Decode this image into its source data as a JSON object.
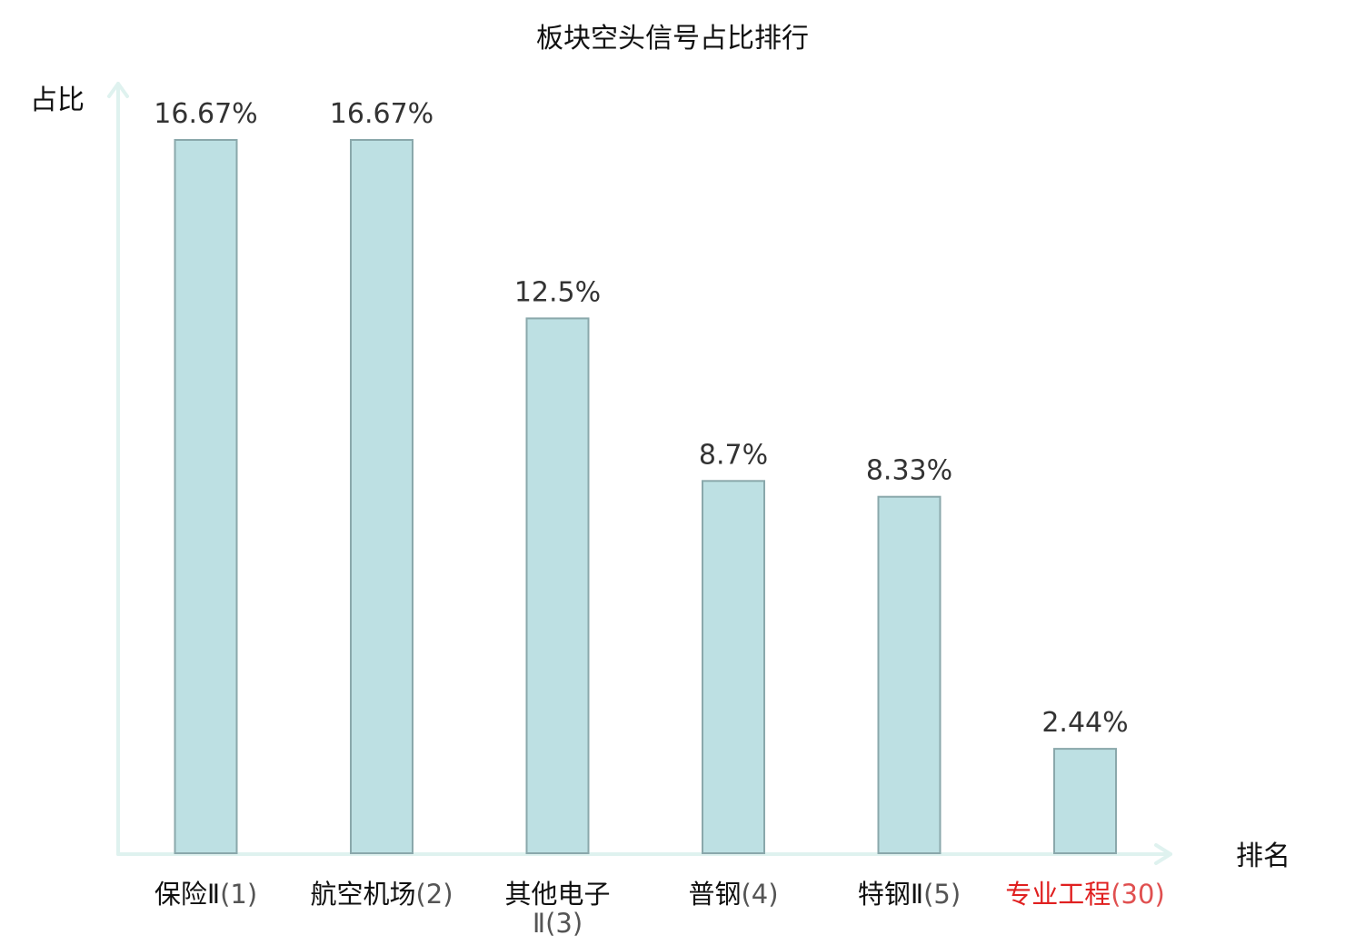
{
  "chart_data": {
    "type": "bar",
    "title": "板块空头信号占比排行",
    "xlabel": "排名",
    "ylabel": "占比",
    "categories": [
      {
        "name": "保险Ⅱ",
        "rank": "(1)",
        "line2": ""
      },
      {
        "name": "航空机场",
        "rank": "(2)",
        "line2": ""
      },
      {
        "name": "其他电子",
        "rank": "",
        "line2": "Ⅱ(3)"
      },
      {
        "name": "普钢",
        "rank": "(4)",
        "line2": ""
      },
      {
        "name": "特钢Ⅱ",
        "rank": "(5)",
        "line2": ""
      },
      {
        "name": "专业工程",
        "rank": "(30)",
        "line2": "",
        "highlight": true
      }
    ],
    "values": [
      16.67,
      16.67,
      12.5,
      8.7,
      8.33,
      2.44
    ],
    "value_labels": [
      "16.67%",
      "16.67%",
      "12.5%",
      "8.7%",
      "8.33%",
      "2.44%"
    ],
    "ylim": [
      0,
      16.67
    ],
    "grid": false,
    "legend": "none"
  },
  "colors": {
    "bar_fill": "#bde0e3",
    "bar_stroke": "#8aa8ab",
    "axis": "#dff2ef",
    "label_text": "#111111",
    "rank_text": "#555555",
    "highlight_text": "#e02020",
    "highlight_rank": "#e05050"
  }
}
